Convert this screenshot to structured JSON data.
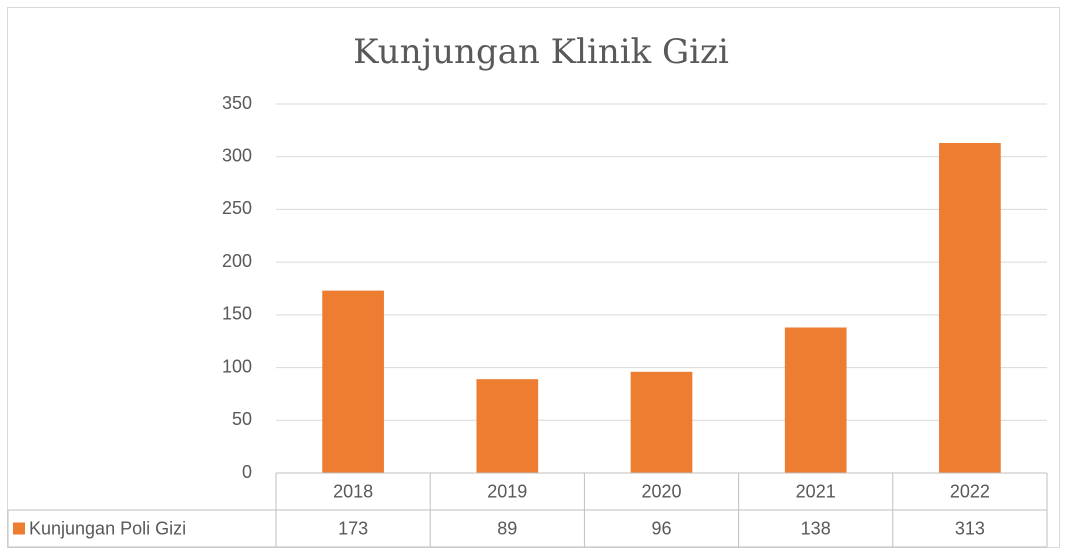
{
  "chart_data": {
    "type": "bar",
    "title": "Kunjungan Klinik Gizi",
    "categories": [
      "2018",
      "2019",
      "2020",
      "2021",
      "2022"
    ],
    "series": [
      {
        "name": "Kunjungan Poli Gizi",
        "color": "#ed7d31",
        "values": [
          173,
          89,
          96,
          138,
          313
        ]
      }
    ],
    "ylim": [
      0,
      350
    ],
    "yticks": [
      0,
      50,
      100,
      150,
      200,
      250,
      300,
      350
    ],
    "grid": true,
    "data_table": true
  }
}
